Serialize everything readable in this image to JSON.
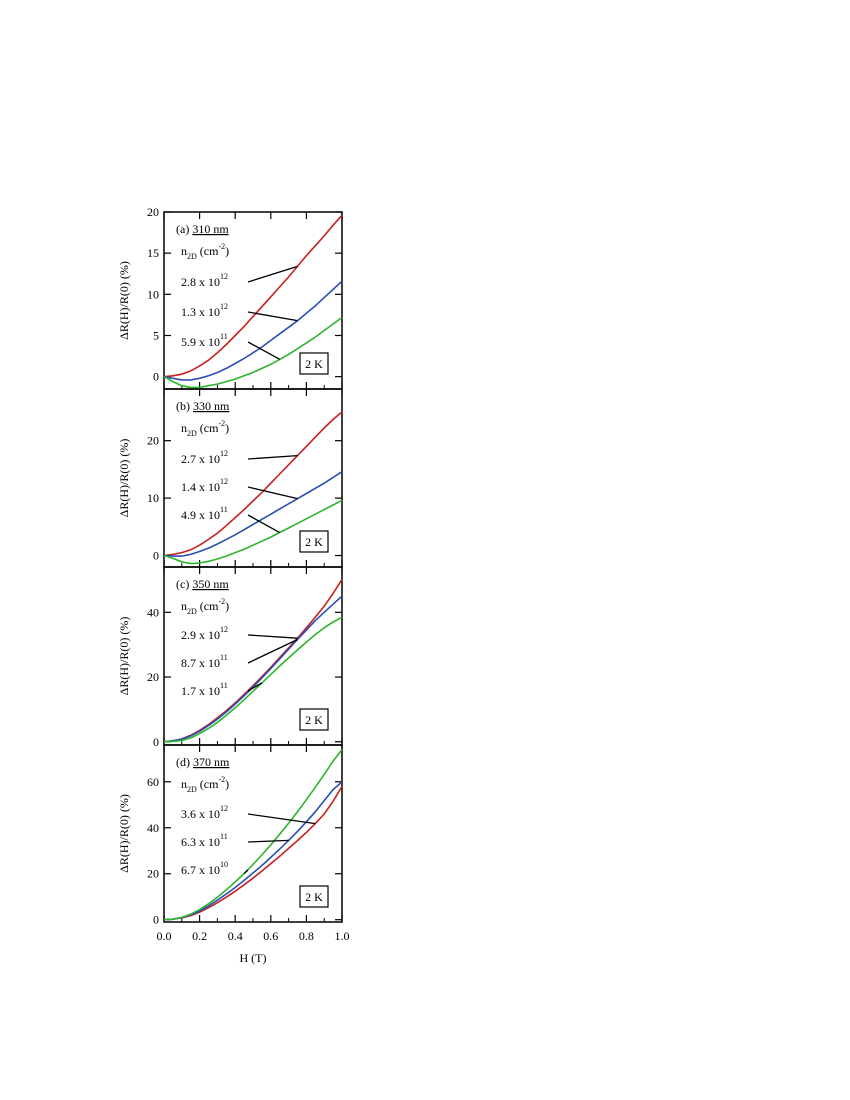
{
  "chart_data": [
    {
      "type": "line",
      "panel_label": "(a)",
      "thickness": "310 nm",
      "density_header": {
        "base": "n",
        "sub": "2D",
        "unit_pre": " (cm",
        "unit_sup": "-2",
        "unit_post": ")"
      },
      "temperature": "2 K",
      "ylabel": "ΔR(H)/R(0) (%)",
      "xlim": [
        0,
        1.0
      ],
      "ylim": [
        -1.5,
        20
      ],
      "yticks": [
        "0",
        "5",
        "10",
        "15",
        "20"
      ],
      "series": [
        {
          "label": {
            "mant": "2.8 x 10",
            "exp": "12"
          },
          "color": "#c8201e",
          "x": [
            0,
            0.05,
            0.1,
            0.15,
            0.2,
            0.25,
            0.3,
            0.35,
            0.4,
            0.45,
            0.5,
            0.55,
            0.6,
            0.65,
            0.7,
            0.75,
            0.8,
            0.85,
            0.9,
            0.95,
            1.0
          ],
          "y": [
            0,
            0.1,
            0.3,
            0.7,
            1.3,
            2.0,
            2.9,
            3.9,
            5.0,
            6.1,
            7.3,
            8.5,
            9.7,
            10.9,
            12.1,
            13.4,
            14.7,
            15.9,
            17.1,
            18.4,
            19.6
          ]
        },
        {
          "label": {
            "mant": "1.3 x 10",
            "exp": "12"
          },
          "color": "#2a4fb5",
          "x": [
            0,
            0.05,
            0.1,
            0.15,
            0.2,
            0.25,
            0.3,
            0.35,
            0.4,
            0.45,
            0.5,
            0.55,
            0.6,
            0.65,
            0.7,
            0.75,
            0.8,
            0.85,
            0.9,
            0.95,
            1.0
          ],
          "y": [
            0,
            -0.2,
            -0.4,
            -0.4,
            -0.2,
            0.1,
            0.5,
            1.0,
            1.6,
            2.2,
            2.9,
            3.6,
            4.4,
            5.2,
            6.0,
            6.8,
            7.7,
            8.6,
            9.6,
            10.6,
            11.6
          ]
        },
        {
          "label": {
            "mant": "5.9 x 10",
            "exp": "11"
          },
          "color": "#2cb52c",
          "x": [
            0,
            0.05,
            0.1,
            0.15,
            0.2,
            0.25,
            0.3,
            0.35,
            0.4,
            0.45,
            0.5,
            0.55,
            0.6,
            0.65,
            0.7,
            0.75,
            0.8,
            0.85,
            0.9,
            0.95,
            1.0
          ],
          "y": [
            0,
            -0.6,
            -1.1,
            -1.3,
            -1.3,
            -1.1,
            -0.9,
            -0.6,
            -0.3,
            0.1,
            0.5,
            1.0,
            1.5,
            2.1,
            2.7,
            3.4,
            4.1,
            4.8,
            5.6,
            6.4,
            7.2
          ]
        }
      ]
    },
    {
      "type": "line",
      "panel_label": "(b)",
      "thickness": "330 nm",
      "density_header": {
        "base": "n",
        "sub": "2D",
        "unit_pre": " (cm",
        "unit_sup": "-2",
        "unit_post": ")"
      },
      "temperature": "2 K",
      "ylabel": "ΔR(H)/R(0) (%)",
      "xlim": [
        0,
        1.0
      ],
      "ylim": [
        -2,
        29
      ],
      "yticks": [
        "0",
        "10",
        "20"
      ],
      "series": [
        {
          "label": {
            "mant": "2.7 x 10",
            "exp": "12"
          },
          "color": "#c8201e",
          "x": [
            0,
            0.05,
            0.1,
            0.15,
            0.2,
            0.25,
            0.3,
            0.35,
            0.4,
            0.45,
            0.5,
            0.55,
            0.6,
            0.65,
            0.7,
            0.75,
            0.8,
            0.85,
            0.9,
            0.95,
            1.0
          ],
          "y": [
            0,
            0.2,
            0.5,
            1.0,
            1.8,
            2.8,
            3.9,
            5.2,
            6.6,
            8.0,
            9.5,
            11.0,
            12.6,
            14.2,
            15.8,
            17.4,
            19.0,
            20.6,
            22.2,
            23.7,
            25.0
          ]
        },
        {
          "label": {
            "mant": "1.4 x 10",
            "exp": "12"
          },
          "color": "#2a4fb5",
          "x": [
            0,
            0.05,
            0.1,
            0.15,
            0.2,
            0.25,
            0.3,
            0.35,
            0.4,
            0.45,
            0.5,
            0.55,
            0.6,
            0.65,
            0.7,
            0.75,
            0.8,
            0.85,
            0.9,
            0.95,
            1.0
          ],
          "y": [
            0,
            -0.1,
            -0.1,
            0.2,
            0.7,
            1.3,
            2.0,
            2.8,
            3.6,
            4.5,
            5.4,
            6.3,
            7.2,
            8.1,
            9.0,
            9.9,
            10.8,
            11.7,
            12.6,
            13.6,
            14.6
          ]
        },
        {
          "label": {
            "mant": "4.9 x 10",
            "exp": "11"
          },
          "color": "#2cb52c",
          "x": [
            0,
            0.05,
            0.1,
            0.15,
            0.2,
            0.25,
            0.3,
            0.35,
            0.4,
            0.45,
            0.5,
            0.55,
            0.6,
            0.65,
            0.7,
            0.75,
            0.8,
            0.85,
            0.9,
            0.95,
            1.0
          ],
          "y": [
            0,
            -0.5,
            -1.1,
            -1.4,
            -1.3,
            -1.0,
            -0.6,
            -0.1,
            0.5,
            1.1,
            1.8,
            2.5,
            3.2,
            4.0,
            4.8,
            5.6,
            6.4,
            7.2,
            8.0,
            8.8,
            9.6
          ]
        }
      ]
    },
    {
      "type": "line",
      "panel_label": "(c)",
      "thickness": "350 nm",
      "density_header": {
        "base": "n",
        "sub": "2D",
        "unit_pre": " (cm",
        "unit_sup": "-2",
        "unit_post": ")"
      },
      "temperature": "2 K",
      "ylabel": "ΔR(H)/R(0) (%)",
      "xlim": [
        0,
        1.0
      ],
      "ylim": [
        -1,
        54
      ],
      "yticks": [
        "0",
        "20",
        "40"
      ],
      "series": [
        {
          "label": {
            "mant": "2.9 x 10",
            "exp": "12"
          },
          "color": "#c8201e",
          "x": [
            0,
            0.05,
            0.1,
            0.15,
            0.2,
            0.25,
            0.3,
            0.35,
            0.4,
            0.45,
            0.5,
            0.55,
            0.6,
            0.65,
            0.7,
            0.75,
            0.8,
            0.85,
            0.9,
            0.95,
            1.0
          ],
          "y": [
            0,
            0.3,
            0.9,
            2.0,
            3.5,
            5.3,
            7.4,
            9.6,
            12.0,
            14.6,
            17.3,
            20.1,
            23.0,
            26.0,
            29.0,
            32.0,
            35.2,
            38.5,
            41.9,
            45.8,
            50.2
          ]
        },
        {
          "label": {
            "mant": "8.7 x 10",
            "exp": "11"
          },
          "color": "#2a4fb5",
          "x": [
            0,
            0.05,
            0.1,
            0.15,
            0.2,
            0.25,
            0.3,
            0.35,
            0.4,
            0.45,
            0.5,
            0.55,
            0.6,
            0.65,
            0.7,
            0.75,
            0.8,
            0.85,
            0.9,
            0.95,
            1.0
          ],
          "y": [
            0,
            0.3,
            0.8,
            1.8,
            3.2,
            5.0,
            7.0,
            9.2,
            11.6,
            14.2,
            16.9,
            19.7,
            22.6,
            25.6,
            28.6,
            31.6,
            34.5,
            37.4,
            40.0,
            42.5,
            45.0
          ]
        },
        {
          "label": {
            "mant": "1.7 x 10",
            "exp": "11"
          },
          "color": "#2cb52c",
          "x": [
            0,
            0.05,
            0.1,
            0.15,
            0.2,
            0.25,
            0.3,
            0.35,
            0.4,
            0.45,
            0.5,
            0.55,
            0.6,
            0.65,
            0.7,
            0.75,
            0.8,
            0.85,
            0.9,
            0.95,
            1.0
          ],
          "y": [
            0,
            0.1,
            0.4,
            1.2,
            2.5,
            4.1,
            6.0,
            8.2,
            10.5,
            13.0,
            15.6,
            18.2,
            20.8,
            23.4,
            25.9,
            28.4,
            30.8,
            33.1,
            35.2,
            37.0,
            38.5
          ]
        }
      ]
    },
    {
      "type": "line",
      "panel_label": "(d)",
      "thickness": "370 nm",
      "density_header": {
        "base": "n",
        "sub": "2D",
        "unit_pre": " (cm",
        "unit_sup": "-2",
        "unit_post": ")"
      },
      "temperature": "2 K",
      "ylabel": "ΔR(H)/R(0) (%)",
      "xlabel": "H (T)",
      "xlim": [
        0,
        1.0
      ],
      "xticks": [
        "0.0",
        "0.2",
        "0.4",
        "0.6",
        "0.8",
        "1.0"
      ],
      "ylim": [
        -1,
        76
      ],
      "yticks": [
        "0",
        "20",
        "40",
        "60"
      ],
      "series": [
        {
          "label": {
            "mant": "3.6 x 10",
            "exp": "12"
          },
          "color": "#c8201e",
          "x": [
            0,
            0.05,
            0.1,
            0.15,
            0.2,
            0.25,
            0.3,
            0.35,
            0.4,
            0.45,
            0.5,
            0.55,
            0.6,
            0.65,
            0.7,
            0.75,
            0.8,
            0.85,
            0.9,
            0.95,
            1.0
          ],
          "y": [
            0,
            0.2,
            0.8,
            1.8,
            3.3,
            5.2,
            7.4,
            9.8,
            12.4,
            15.2,
            18.1,
            21.2,
            24.4,
            27.6,
            31.0,
            34.4,
            38.0,
            41.8,
            46.0,
            51.5,
            58.0
          ]
        },
        {
          "label": {
            "mant": "6.3 x 10",
            "exp": "11"
          },
          "color": "#2a4fb5",
          "x": [
            0,
            0.05,
            0.1,
            0.15,
            0.2,
            0.25,
            0.3,
            0.35,
            0.4,
            0.45,
            0.5,
            0.55,
            0.6,
            0.65,
            0.7,
            0.75,
            0.8,
            0.85,
            0.9,
            0.95,
            1.0
          ],
          "y": [
            0,
            0.2,
            0.9,
            2.1,
            3.8,
            6.0,
            8.5,
            11.2,
            14.0,
            17.1,
            20.3,
            23.6,
            27.1,
            30.7,
            34.5,
            38.4,
            42.6,
            47.0,
            51.8,
            56.6,
            60.0
          ]
        },
        {
          "label": {
            "mant": "6.7 x 10",
            "exp": "10"
          },
          "color": "#2cb52c",
          "x": [
            0,
            0.05,
            0.1,
            0.15,
            0.2,
            0.25,
            0.3,
            0.35,
            0.4,
            0.45,
            0.5,
            0.55,
            0.6,
            0.65,
            0.7,
            0.75,
            0.8,
            0.85,
            0.9,
            0.95,
            1.0
          ],
          "y": [
            0,
            0.2,
            1.0,
            2.4,
            4.4,
            6.9,
            9.8,
            13.0,
            16.4,
            20.1,
            24.0,
            28.2,
            32.6,
            37.2,
            42.0,
            47.0,
            52.2,
            57.6,
            63.2,
            69.0,
            74.0
          ]
        }
      ]
    }
  ]
}
